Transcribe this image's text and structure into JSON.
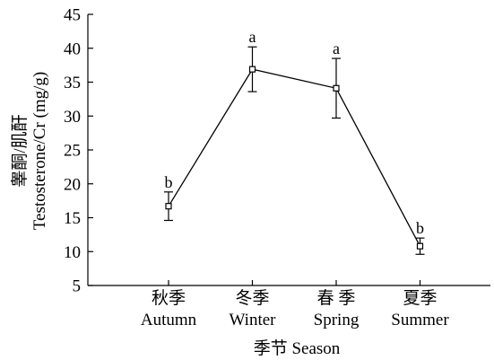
{
  "chart_data": {
    "type": "line",
    "categories": [
      "秋季\nAutumn",
      "冬季\nWinter",
      "春 季\nSpring",
      "夏季\nSummer"
    ],
    "category_lines": [
      [
        "秋季",
        "Autumn"
      ],
      [
        "冬季",
        "Winter"
      ],
      [
        "春 季",
        "Spring"
      ],
      [
        "夏季",
        "Summer"
      ]
    ],
    "series": [
      {
        "values": [
          16.7,
          36.9,
          34.1,
          10.8
        ],
        "error": [
          2.1,
          3.3,
          4.4,
          1.2
        ],
        "labels": [
          "b",
          "a",
          "a",
          "b"
        ]
      }
    ],
    "xlabel": "季节 Season",
    "ylabel_lines": [
      "睾酮/肌酐",
      "Testosterone/Cr (mg/g)"
    ],
    "ylim": [
      5,
      45
    ],
    "yticks": [
      5,
      10,
      15,
      20,
      25,
      30,
      35,
      40,
      45
    ],
    "grid": false,
    "marker": "open-square",
    "colors": {
      "line": "#000000",
      "axis": "#000000"
    }
  }
}
